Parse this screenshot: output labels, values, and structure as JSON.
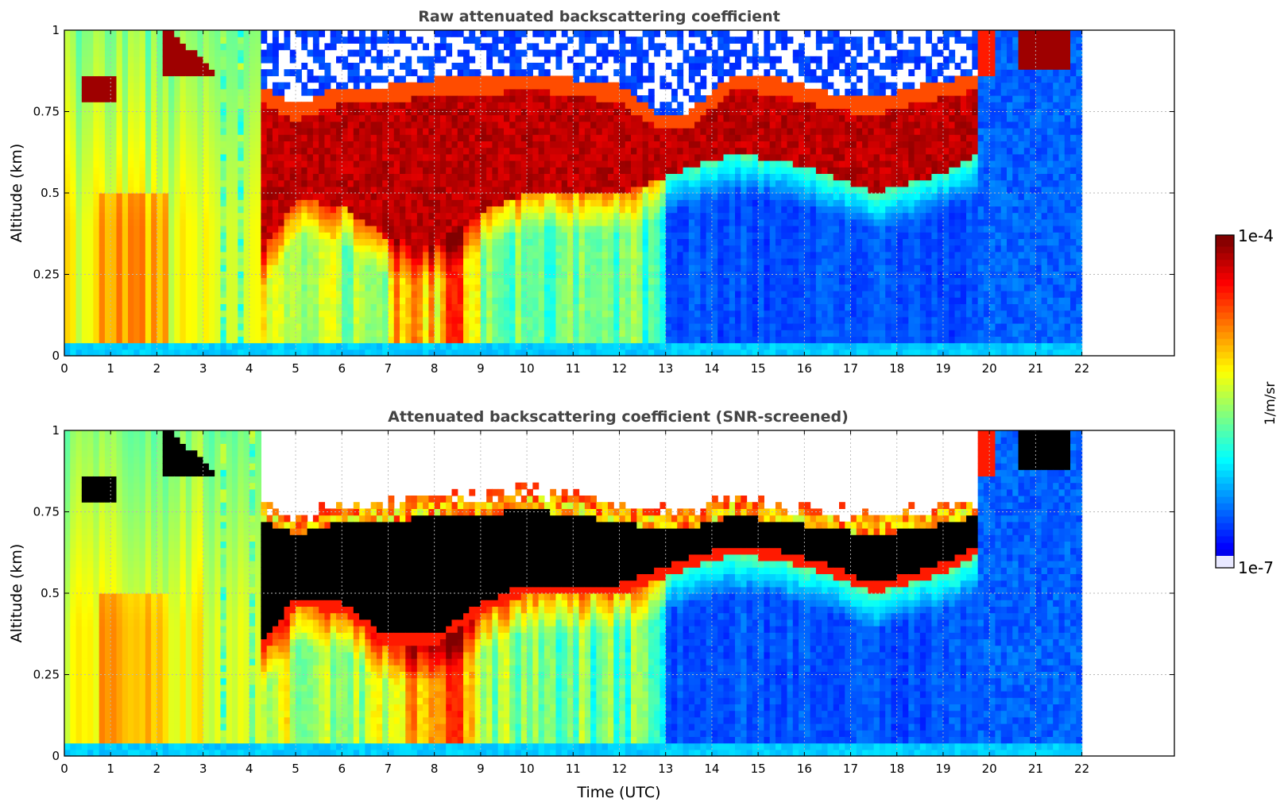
{
  "chart_data": [
    {
      "type": "heatmap",
      "title": "Raw attenuated backscattering coefficient",
      "xlabel": "",
      "ylabel": "Altitude (km)",
      "xlim": [
        0,
        24
      ],
      "ylim": [
        0,
        1
      ],
      "data_extent_x": [
        0,
        22
      ],
      "xticks": [
        "0",
        "1",
        "2",
        "3",
        "4",
        "5",
        "6",
        "7",
        "8",
        "9",
        "10",
        "11",
        "12",
        "13",
        "14",
        "15",
        "16",
        "17",
        "18",
        "19",
        "20",
        "21",
        "22"
      ],
      "yticks": [
        "0",
        "0.25",
        "0.5",
        "0.75",
        "1"
      ],
      "grid": true,
      "colormap": "jet",
      "colorscale": "log",
      "clim": [
        "1e-7",
        "1e-4"
      ],
      "features": [
        {
          "name": "cloud_layer_top",
          "time": [
            0,
            4.3,
            5,
            6,
            7,
            8,
            9,
            10,
            11,
            12,
            12.8,
            13.5,
            14.5,
            15.5,
            16.5,
            17.5,
            18.5,
            19.3,
            19.8
          ],
          "alt": [
            0.98,
            0.78,
            0.72,
            0.78,
            0.78,
            0.8,
            0.8,
            0.82,
            0.8,
            0.78,
            0.7,
            0.7,
            0.82,
            0.8,
            0.76,
            0.74,
            0.78,
            0.8,
            0.82
          ]
        },
        {
          "name": "cloud_layer_base",
          "time": [
            4.3,
            5,
            6,
            7,
            8,
            9,
            10,
            11,
            12,
            12.8,
            13.5,
            14.5,
            15.5,
            16.5,
            17.5,
            18.5,
            19.3,
            19.8
          ],
          "alt": [
            0.32,
            0.48,
            0.46,
            0.36,
            0.34,
            0.44,
            0.5,
            0.5,
            0.5,
            0.54,
            0.58,
            0.62,
            0.6,
            0.56,
            0.5,
            0.54,
            0.58,
            0.62
          ]
        }
      ]
    },
    {
      "type": "heatmap",
      "title": "Attenuated backscattering coefficient (SNR-screened)",
      "xlabel": "Time (UTC)",
      "ylabel": "Altitude (km)",
      "xlim": [
        0,
        24
      ],
      "ylim": [
        0,
        1
      ],
      "data_extent_x": [
        0,
        22
      ],
      "xticks": [
        "0",
        "1",
        "2",
        "3",
        "4",
        "5",
        "6",
        "7",
        "8",
        "9",
        "10",
        "11",
        "12",
        "13",
        "14",
        "15",
        "16",
        "17",
        "18",
        "19",
        "20",
        "21",
        "22"
      ],
      "yticks": [
        "0",
        "0.25",
        "0.5",
        "0.75",
        "1"
      ],
      "grid": true,
      "colormap": "jet",
      "colorscale": "log",
      "clim": [
        "1e-7",
        "1e-4"
      ],
      "features": [
        {
          "name": "saturated_layer_top",
          "time": [
            4.3,
            5,
            6,
            7,
            8,
            9,
            10,
            11,
            12,
            12.8,
            13.5,
            14.5,
            15.5,
            16.5,
            17.5,
            18.5,
            19.3,
            19.8
          ],
          "alt": [
            0.72,
            0.68,
            0.72,
            0.72,
            0.74,
            0.74,
            0.76,
            0.74,
            0.72,
            0.7,
            0.7,
            0.74,
            0.72,
            0.7,
            0.68,
            0.7,
            0.72,
            0.74
          ]
        },
        {
          "name": "saturated_layer_base",
          "time": [
            4.3,
            5,
            6,
            7,
            8,
            9,
            10,
            11,
            12,
            12.8,
            13.5,
            14.5,
            15.5,
            16.5,
            17.5,
            18.5,
            19.3,
            19.8
          ],
          "alt": [
            0.32,
            0.46,
            0.44,
            0.34,
            0.34,
            0.44,
            0.5,
            0.5,
            0.5,
            0.54,
            0.58,
            0.62,
            0.6,
            0.56,
            0.5,
            0.54,
            0.58,
            0.62
          ]
        }
      ]
    }
  ],
  "colorbar": {
    "max_label": "1e-4",
    "min_label": "1e-7",
    "unit_label": "1/m/sr",
    "colormap": "jet",
    "min_color": "#e8e8ff",
    "max_color": "#7f0000"
  }
}
